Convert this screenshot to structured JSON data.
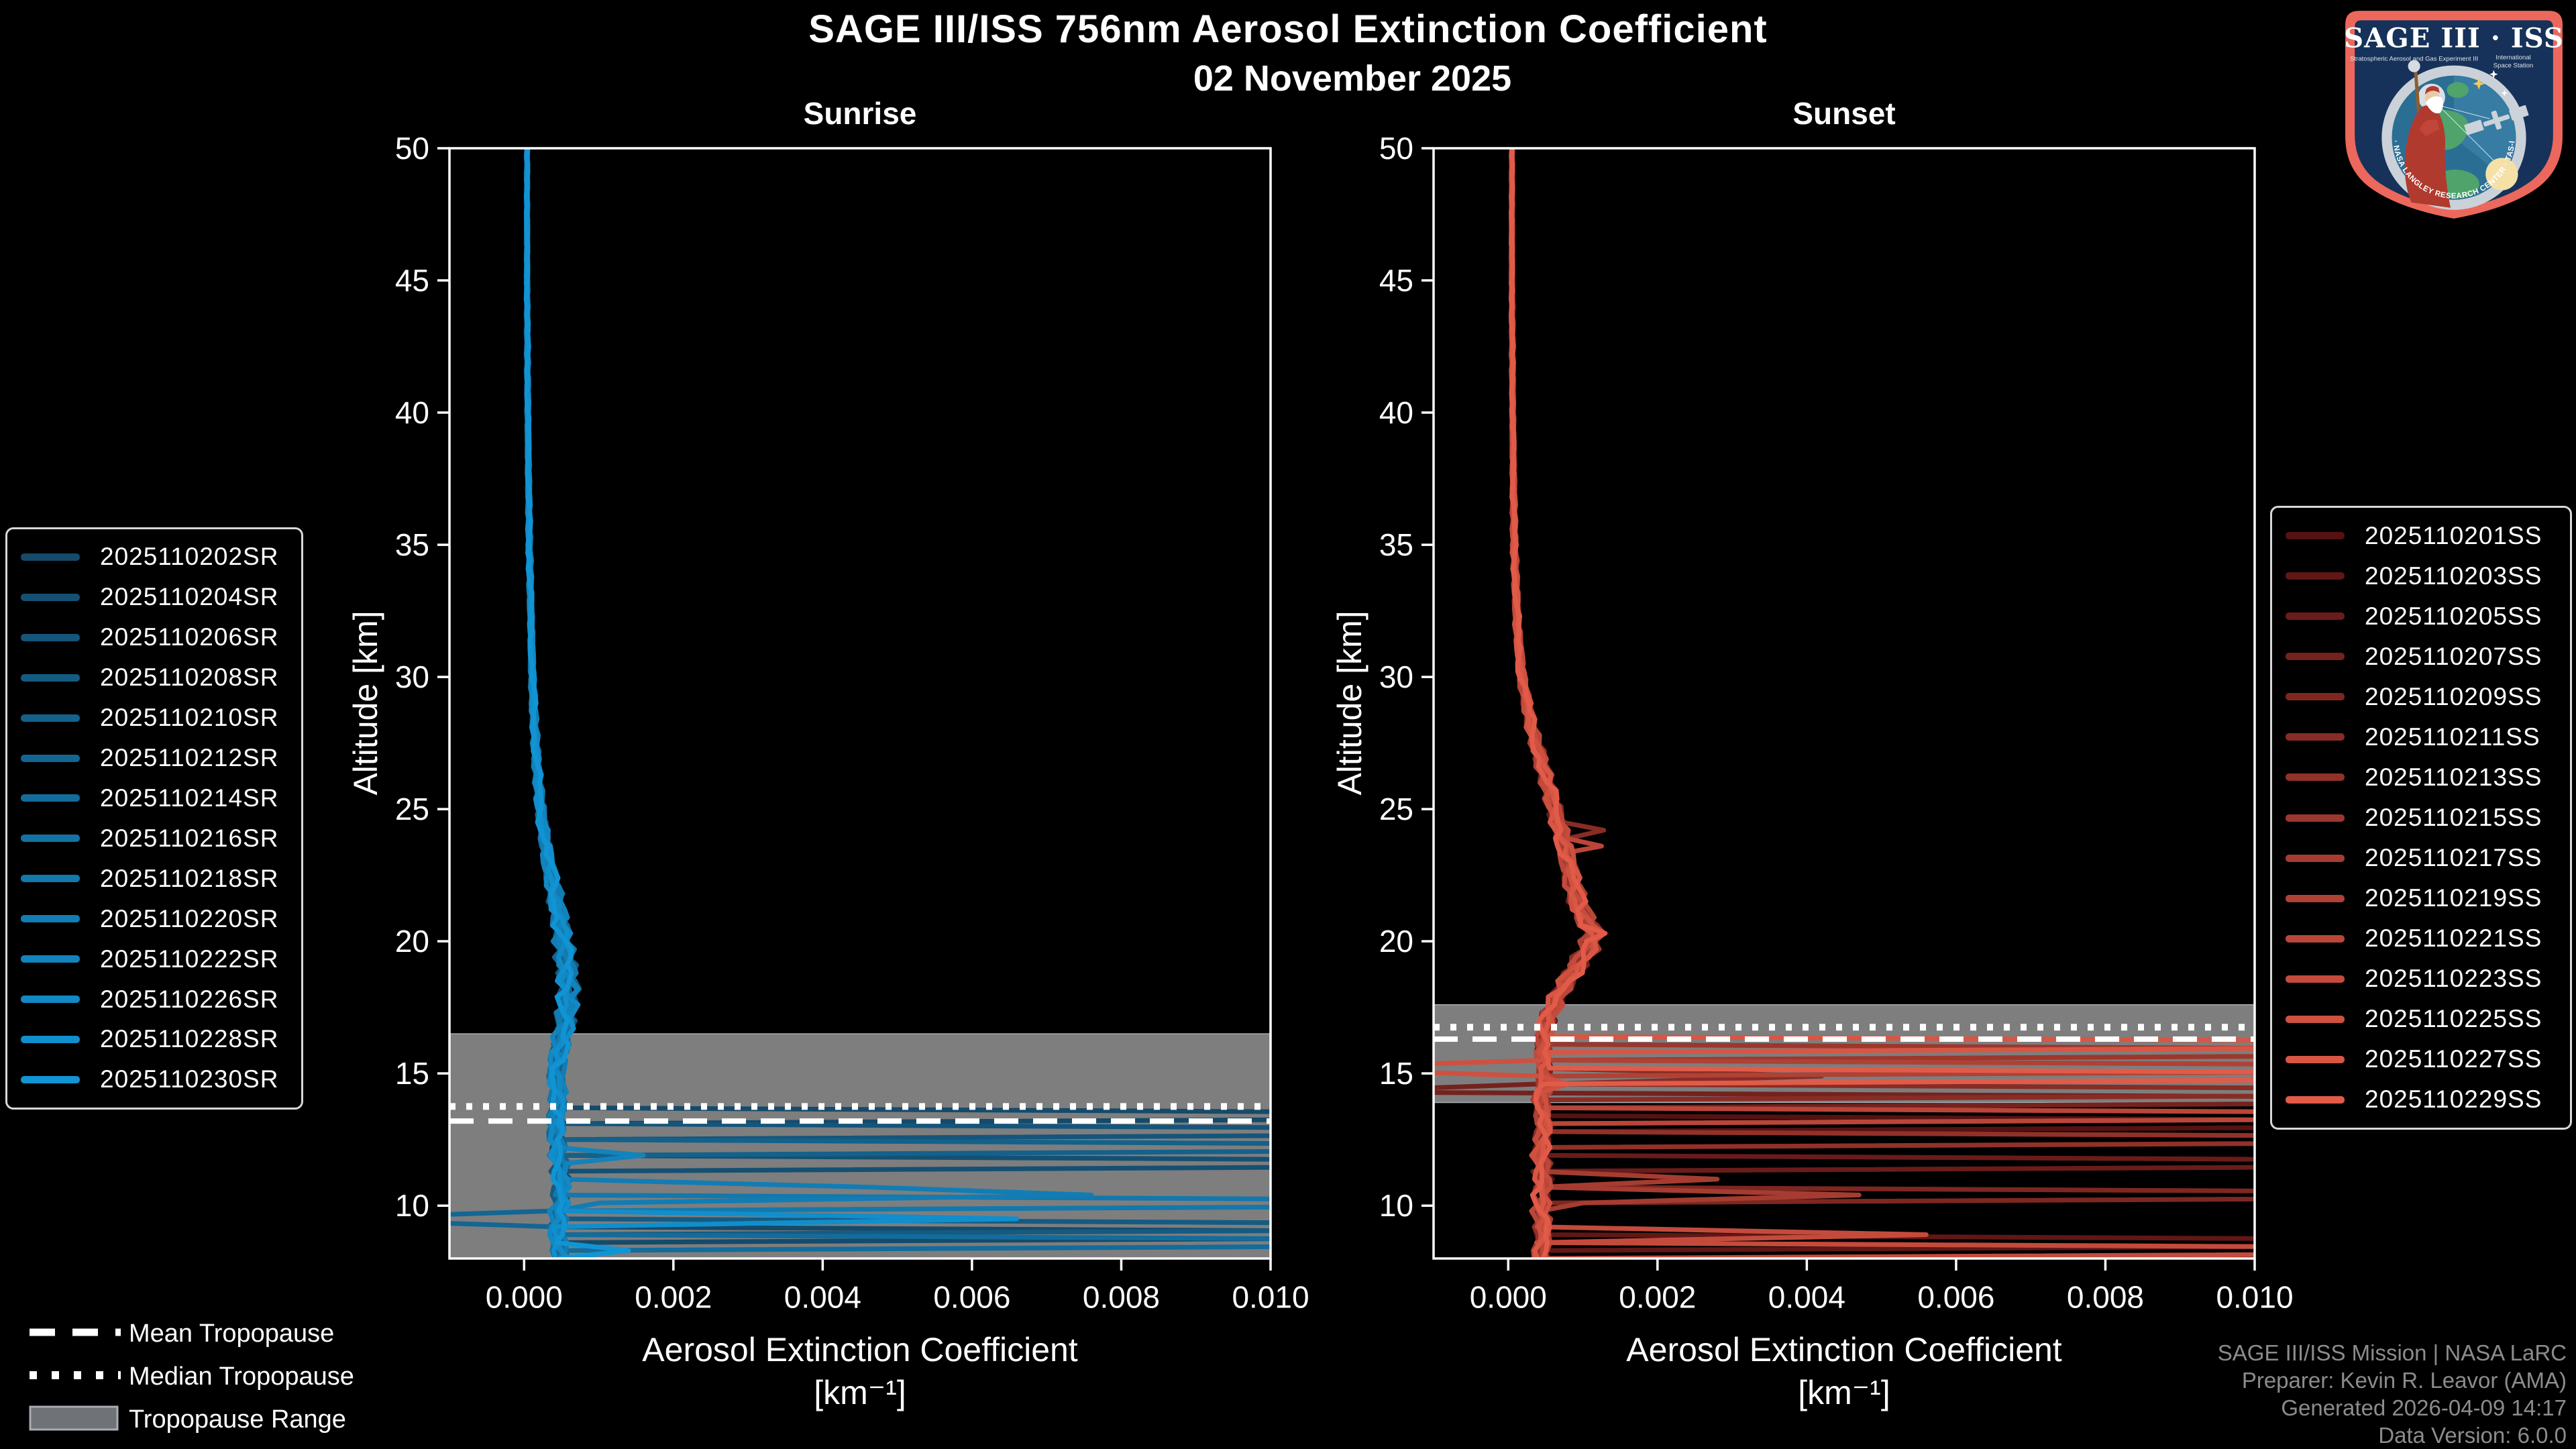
{
  "header": {
    "title": "SAGE III/ISS 756nm Aerosol Extinction Coefficient",
    "date": "02 November 2025"
  },
  "footer": {
    "color": "#8C8C8C",
    "lines": [
      "SAGE III/ISS Mission | NASA LaRC",
      "Preparer: Kevin R. Leavor (AMA)",
      "Generated 2026-04-09 14:17",
      "Data Version: 6.0.0"
    ]
  },
  "tropopause_legend": {
    "items": [
      {
        "symbol": "dashed-line",
        "label": "Mean Tropopause"
      },
      {
        "symbol": "dotted-line",
        "label": "Median Tropopause"
      },
      {
        "symbol": "gray-band",
        "label": "Tropopause Range"
      }
    ]
  },
  "logo": {
    "title": "SAGE III · ISS",
    "sub_left": "Stratospheric Aerosol and Gas Experiment III",
    "sub_right1": "International",
    "sub_right2": "Space Station",
    "arc_text": "BALL · NASA LANGLEY RESEARCH CENTER · TAS-I · ESA",
    "border_color": "#EC685C",
    "shield_color": "#16325A"
  },
  "chart_data": {
    "type": "line",
    "title": "SAGE III/ISS 756nm Aerosol Extinction Coefficient",
    "subtitle": "02 November 2025",
    "xlabel_line1": "Aerosol Extinction Coefficient",
    "xlabel_line2": "[km⁻¹]",
    "ylabel": "Altitude [km]",
    "xlim": [
      -0.001,
      0.01
    ],
    "ylim": [
      8,
      50
    ],
    "xtick_labels": [
      "0.000",
      "0.002",
      "0.004",
      "0.006",
      "0.008",
      "0.010"
    ],
    "ytick_labels": [
      "50",
      "45",
      "40",
      "35",
      "30",
      "25",
      "20",
      "15",
      "10"
    ],
    "grid": false,
    "axis_color": "#ffffff",
    "panels": [
      {
        "id": "sunrise",
        "title": "Sunrise",
        "legend_position": "left",
        "color_dark": "#154A6B",
        "color_bright": "#1194D4",
        "tropopause": {
          "mean_km": 13.2,
          "median_km": 13.75,
          "range_km": [
            8,
            16.5
          ],
          "band_color": "#7E7E7E",
          "line_color": "#ffffff"
        },
        "backbone": [
          [
            50,
            4e-05
          ],
          [
            45,
            4e-05
          ],
          [
            40,
            5e-05
          ],
          [
            35,
            7e-05
          ],
          [
            30,
            0.00011
          ],
          [
            27,
            0.00016
          ],
          [
            25,
            0.00022
          ],
          [
            23,
            0.00032
          ],
          [
            22,
            0.0004
          ],
          [
            21,
            0.00047
          ],
          [
            20,
            0.00052
          ],
          [
            19,
            0.00057
          ],
          [
            18,
            0.0006
          ],
          [
            17,
            0.00055
          ],
          [
            16,
            0.00048
          ],
          [
            15,
            0.00043
          ],
          [
            14,
            0.00046
          ],
          [
            13,
            0.00042
          ],
          [
            12,
            0.00046
          ],
          [
            11,
            0.0005
          ],
          [
            10,
            0.00047
          ],
          [
            9,
            0.00044
          ],
          [
            8,
            0.0005
          ]
        ],
        "jitter_profile": [
          [
            50,
            1.2e-05
          ],
          [
            40,
            2e-05
          ],
          [
            32,
            3e-05
          ],
          [
            27,
            5e-05
          ],
          [
            24,
            8e-05
          ],
          [
            22,
            0.00012
          ],
          [
            20,
            0.00014
          ],
          [
            18,
            0.00017
          ],
          [
            16,
            0.00015
          ],
          [
            12,
            0.00013
          ],
          [
            8,
            0.00014
          ]
        ],
        "series": [
          {
            "label": "2025110202SR",
            "spikes": [
              [
                13.35,
                0.02
              ],
              [
                8.9,
                0.02
              ]
            ]
          },
          {
            "label": "2025110204SR",
            "spikes": [
              [
                11.7,
                0.02
              ]
            ]
          },
          {
            "label": "2025110206SR",
            "spikes": [
              [
                12.95,
                0.02
              ]
            ]
          },
          {
            "label": "2025110208SR",
            "spikes": [
              [
                9.2,
                0.02
              ]
            ]
          },
          {
            "label": "2025110210SR",
            "spikes": [
              [
                12.3,
                0.02
              ]
            ]
          },
          {
            "label": "2025110212SR",
            "spikes": [
              [
                9.35,
                -0.0028
              ]
            ]
          },
          {
            "label": "2025110214SR",
            "spikes": [
              [
                8.6,
                0.02
              ]
            ]
          },
          {
            "label": "2025110216SR",
            "spikes": []
          },
          {
            "label": "2025110218SR",
            "spikes": [
              [
                10.05,
                0.02
              ]
            ]
          },
          {
            "label": "2025110220SR",
            "spikes": [
              [
                10.8,
                0.0046
              ],
              [
                10.5,
                0.0076
              ],
              [
                10.1,
                0.001
              ]
            ]
          },
          {
            "label": "2025110222SR",
            "spikes": [
              [
                12.0,
                0.0016
              ]
            ]
          },
          {
            "label": "2025110226SR",
            "spikes": []
          },
          {
            "label": "2025110228SR",
            "spikes": [
              [
                9.6,
                0.0066
              ]
            ]
          },
          {
            "label": "2025110230SR",
            "spikes": [
              [
                8.35,
                0.0014
              ]
            ]
          }
        ]
      },
      {
        "id": "sunset",
        "title": "Sunset",
        "legend_position": "right",
        "color_dark": "#561212",
        "color_bright": "#E25B48",
        "tropopause": {
          "mean_km": 16.3,
          "median_km": 16.75,
          "range_km": [
            13.9,
            17.6
          ],
          "band_color": "#7E7E7E",
          "line_color": "#ffffff"
        },
        "backbone": [
          [
            50,
            5e-05
          ],
          [
            45,
            5e-05
          ],
          [
            40,
            6e-05
          ],
          [
            35,
            8e-05
          ],
          [
            32,
            0.00012
          ],
          [
            30,
            0.00018
          ],
          [
            28,
            0.00032
          ],
          [
            26,
            0.00052
          ],
          [
            25,
            0.00062
          ],
          [
            24,
            0.00072
          ],
          [
            23,
            0.0008
          ],
          [
            22,
            0.00088
          ],
          [
            21,
            0.001
          ],
          [
            20.3,
            0.00115
          ],
          [
            19.6,
            0.00105
          ],
          [
            19,
            0.0009
          ],
          [
            18,
            0.00068
          ],
          [
            17,
            0.00052
          ],
          [
            16,
            0.00046
          ],
          [
            15,
            0.0005
          ],
          [
            14,
            0.00044
          ],
          [
            13,
            0.00048
          ],
          [
            12,
            0.00043
          ],
          [
            11,
            0.00047
          ],
          [
            10,
            0.00043
          ],
          [
            9,
            0.00047
          ],
          [
            8,
            0.00043
          ]
        ],
        "jitter_profile": [
          [
            50,
            1.2e-05
          ],
          [
            40,
            2e-05
          ],
          [
            33,
            4e-05
          ],
          [
            29,
            7e-05
          ],
          [
            26,
            0.00011
          ],
          [
            23,
            0.00014
          ],
          [
            21,
            0.00016
          ],
          [
            19.5,
            0.00016
          ],
          [
            18,
            0.00014
          ],
          [
            16,
            0.00013
          ],
          [
            12,
            0.00013
          ],
          [
            8,
            0.00014
          ]
        ],
        "series": [
          {
            "label": "2025110201SS",
            "spikes": [
              [
                13.0,
                0.02
              ]
            ]
          },
          {
            "label": "2025110203SS",
            "spikes": [
              [
                8.7,
                0.02
              ]
            ]
          },
          {
            "label": "2025110205SS",
            "spikes": [
              [
                11.7,
                0.02
              ]
            ]
          },
          {
            "label": "2025110207SS",
            "spikes": [
              [
                14.2,
                -0.0026
              ],
              [
                13.9,
                0.02
              ]
            ]
          },
          {
            "label": "2025110209SS",
            "spikes": [
              [
                10.25,
                0.02
              ]
            ]
          },
          {
            "label": "2025110211SS",
            "spikes": [
              [
                24.2,
                0.00128
              ],
              [
                14.8,
                0.0042
              ],
              [
                14.45,
                0.02
              ]
            ]
          },
          {
            "label": "2025110213SS",
            "spikes": [
              [
                12.5,
                0.02
              ]
            ]
          },
          {
            "label": "2025110215SS",
            "spikes": [
              [
                15.9,
                0.02
              ]
            ]
          },
          {
            "label": "2025110217SS",
            "spikes": [
              [
                10.9,
                0.0028
              ],
              [
                10.45,
                0.0047
              ],
              [
                10.0,
                0.001
              ]
            ]
          },
          {
            "label": "2025110219SS",
            "spikes": [
              [
                15.3,
                0.02
              ]
            ]
          },
          {
            "label": "2025110221SS",
            "spikes": [
              [
                23.6,
                0.00125
              ],
              [
                13.35,
                0.02
              ]
            ]
          },
          {
            "label": "2025110223SS",
            "spikes": [
              [
                9.0,
                0.0056
              ],
              [
                8.4,
                0.02
              ]
            ]
          },
          {
            "label": "2025110225SS",
            "spikes": [
              [
                15.05,
                -0.003
              ],
              [
                14.6,
                0.0008
              ]
            ]
          },
          {
            "label": "2025110227SS",
            "spikes": [
              [
                16.1,
                0.02
              ]
            ]
          },
          {
            "label": "2025110229SS",
            "spikes": [
              [
                20.4,
                0.0013
              ],
              [
                15.0,
                0.02
              ]
            ]
          }
        ]
      }
    ]
  }
}
